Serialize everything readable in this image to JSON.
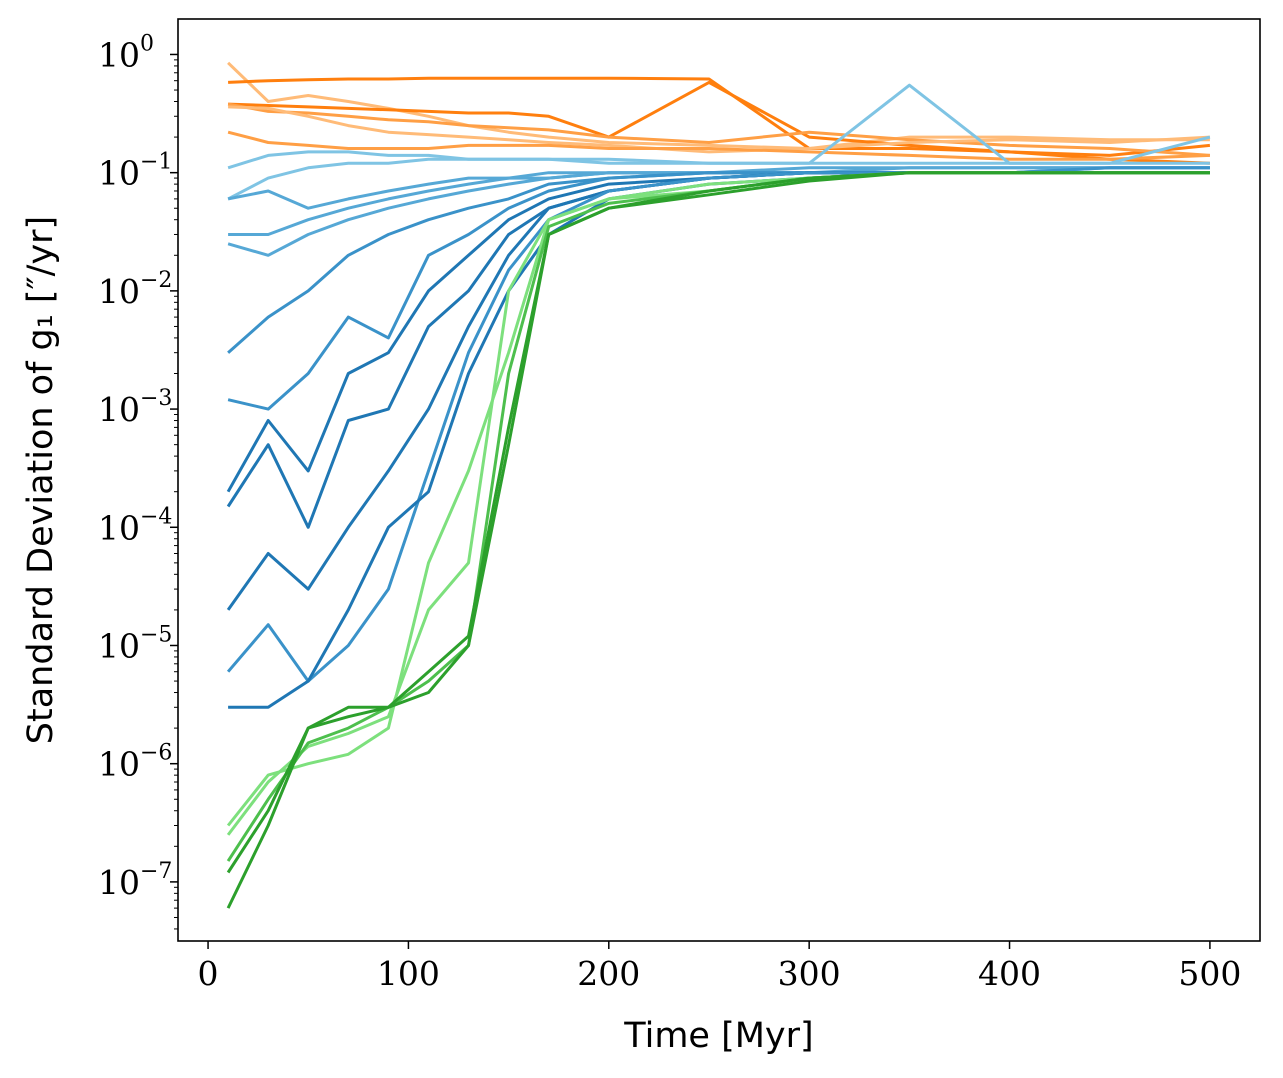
{
  "chart_data": {
    "type": "line",
    "title": "",
    "xlabel": "Time [Myr]",
    "ylabel": "Standard Deviation of g₁ [″/yr]",
    "xlim": [
      -15,
      525
    ],
    "ylim_log10": [
      -7.5,
      0.3
    ],
    "yscale": "log",
    "grid": false,
    "legend": "none",
    "x_ticks": [
      0,
      100,
      200,
      300,
      400,
      500
    ],
    "x_tick_labels": [
      "0",
      "100",
      "200",
      "300",
      "400",
      "500"
    ],
    "y_ticks_log10": [
      0,
      -1,
      -2,
      -3,
      -4,
      -5,
      -6,
      -7
    ],
    "y_tick_base": "10",
    "y_tick_exponents": [
      "0",
      "−1",
      "−2",
      "−3",
      "−4",
      "−5",
      "−6",
      "−7"
    ],
    "colors": {
      "orange_dark": "#ff7f0e",
      "orange_mid": "#ff9f45",
      "orange_light": "#ffbb78",
      "blue_dark": "#1f77b4",
      "blue_mid": "#3a92c9",
      "blue_light": "#56a8d6",
      "blue_pale": "#7fc4e4",
      "green_dark": "#2ca02c",
      "green_mid": "#4dbf4d",
      "green_light": "#7de07d"
    },
    "series_points_x": [
      10,
      30,
      50,
      70,
      90,
      110,
      130,
      150,
      170,
      200,
      250,
      300,
      350,
      400,
      450,
      500
    ],
    "series": [
      {
        "color": "orange_light",
        "y": [
          0.85,
          0.4,
          0.45,
          0.4,
          0.35,
          0.3,
          0.25,
          0.22,
          0.2,
          0.18,
          0.17,
          0.16,
          0.2,
          0.2,
          0.19,
          0.19
        ]
      },
      {
        "color": "orange_dark",
        "y": [
          0.58,
          0.6,
          0.61,
          0.62,
          0.62,
          0.63,
          0.63,
          0.63,
          0.63,
          0.63,
          0.62,
          0.16,
          0.16,
          0.15,
          0.13,
          0.12
        ]
      },
      {
        "color": "orange_dark",
        "y": [
          0.38,
          0.37,
          0.36,
          0.35,
          0.34,
          0.33,
          0.32,
          0.32,
          0.3,
          0.2,
          0.58,
          0.2,
          0.17,
          0.15,
          0.14,
          0.17
        ]
      },
      {
        "color": "orange_mid",
        "y": [
          0.38,
          0.33,
          0.32,
          0.3,
          0.28,
          0.27,
          0.25,
          0.24,
          0.23,
          0.2,
          0.18,
          0.22,
          0.19,
          0.17,
          0.16,
          0.14
        ]
      },
      {
        "color": "orange_light",
        "y": [
          0.36,
          0.35,
          0.3,
          0.25,
          0.22,
          0.21,
          0.2,
          0.19,
          0.18,
          0.17,
          0.15,
          0.16,
          0.18,
          0.19,
          0.18,
          0.2
        ]
      },
      {
        "color": "orange_mid",
        "y": [
          0.22,
          0.18,
          0.17,
          0.16,
          0.16,
          0.16,
          0.17,
          0.17,
          0.17,
          0.16,
          0.16,
          0.15,
          0.14,
          0.13,
          0.13,
          0.14
        ]
      },
      {
        "color": "blue_pale",
        "y": [
          0.11,
          0.14,
          0.15,
          0.15,
          0.14,
          0.14,
          0.13,
          0.13,
          0.13,
          0.13,
          0.12,
          0.12,
          0.55,
          0.12,
          0.12,
          0.12
        ]
      },
      {
        "color": "blue_pale",
        "y": [
          0.06,
          0.09,
          0.11,
          0.12,
          0.12,
          0.13,
          0.13,
          0.13,
          0.13,
          0.12,
          0.12,
          0.12,
          0.12,
          0.12,
          0.12,
          0.2
        ]
      },
      {
        "color": "blue_light",
        "y": [
          0.06,
          0.07,
          0.05,
          0.06,
          0.07,
          0.08,
          0.09,
          0.09,
          0.1,
          0.1,
          0.1,
          0.11,
          0.11,
          0.11,
          0.11,
          0.11
        ]
      },
      {
        "color": "blue_light",
        "y": [
          0.03,
          0.03,
          0.04,
          0.05,
          0.06,
          0.07,
          0.08,
          0.09,
          0.09,
          0.1,
          0.1,
          0.1,
          0.11,
          0.11,
          0.11,
          0.11
        ]
      },
      {
        "color": "blue_light",
        "y": [
          0.025,
          0.02,
          0.03,
          0.04,
          0.05,
          0.06,
          0.07,
          0.08,
          0.09,
          0.1,
          0.1,
          0.1,
          0.1,
          0.1,
          0.11,
          0.11
        ]
      },
      {
        "color": "blue_mid",
        "y": [
          0.003,
          0.006,
          0.01,
          0.02,
          0.03,
          0.04,
          0.05,
          0.06,
          0.08,
          0.09,
          0.1,
          0.1,
          0.1,
          0.1,
          0.11,
          0.11
        ]
      },
      {
        "color": "blue_mid",
        "y": [
          0.0012,
          0.001,
          0.002,
          0.006,
          0.004,
          0.02,
          0.03,
          0.05,
          0.07,
          0.09,
          0.1,
          0.1,
          0.1,
          0.1,
          0.1,
          0.1
        ]
      },
      {
        "color": "blue_dark",
        "y": [
          0.0002,
          0.0008,
          0.0003,
          0.002,
          0.003,
          0.01,
          0.02,
          0.04,
          0.06,
          0.08,
          0.09,
          0.1,
          0.1,
          0.1,
          0.1,
          0.1
        ]
      },
      {
        "color": "blue_dark",
        "y": [
          0.00015,
          0.0005,
          0.0001,
          0.0008,
          0.001,
          0.005,
          0.01,
          0.03,
          0.05,
          0.07,
          0.09,
          0.1,
          0.1,
          0.1,
          0.1,
          0.1
        ]
      },
      {
        "color": "blue_dark",
        "y": [
          2e-05,
          6e-05,
          3e-05,
          0.0001,
          0.0003,
          0.001,
          0.005,
          0.02,
          0.05,
          0.07,
          0.09,
          0.1,
          0.1,
          0.1,
          0.1,
          0.1
        ]
      },
      {
        "color": "blue_mid",
        "y": [
          6e-06,
          1.5e-05,
          5e-06,
          1e-05,
          3e-05,
          0.0003,
          0.003,
          0.015,
          0.04,
          0.07,
          0.09,
          0.1,
          0.1,
          0.1,
          0.1,
          0.1
        ]
      },
      {
        "color": "blue_dark",
        "y": [
          3e-06,
          3e-06,
          5e-06,
          2e-05,
          0.0001,
          0.0002,
          0.002,
          0.01,
          0.03,
          0.06,
          0.08,
          0.09,
          0.1,
          0.1,
          0.1,
          0.1
        ]
      },
      {
        "color": "green_light",
        "y": [
          3e-07,
          8e-07,
          1e-06,
          1.2e-06,
          2e-06,
          5e-05,
          0.0003,
          0.003,
          0.04,
          0.06,
          0.07,
          0.09,
          0.1,
          0.1,
          0.1,
          0.1
        ]
      },
      {
        "color": "green_light",
        "y": [
          2.5e-07,
          7e-07,
          1.4e-06,
          1.8e-06,
          2.5e-06,
          2e-05,
          5e-05,
          0.01,
          0.04,
          0.06,
          0.08,
          0.09,
          0.1,
          0.1,
          0.1,
          0.1
        ]
      },
      {
        "color": "green_mid",
        "y": [
          1.5e-07,
          5e-07,
          1.5e-06,
          2e-06,
          3e-06,
          5e-06,
          1e-05,
          0.002,
          0.035,
          0.055,
          0.07,
          0.09,
          0.1,
          0.1,
          0.1,
          0.1
        ]
      },
      {
        "color": "green_dark",
        "y": [
          1.2e-07,
          4e-07,
          2e-06,
          3e-06,
          3e-06,
          6e-06,
          1.2e-05,
          0.0007,
          0.03,
          0.05,
          0.07,
          0.09,
          0.1,
          0.1,
          0.1,
          0.1
        ]
      },
      {
        "color": "green_dark",
        "y": [
          6e-08,
          3e-07,
          2e-06,
          2.5e-06,
          3e-06,
          4e-06,
          1e-05,
          0.0005,
          0.03,
          0.05,
          0.065,
          0.085,
          0.1,
          0.1,
          0.1,
          0.1
        ]
      }
    ]
  }
}
